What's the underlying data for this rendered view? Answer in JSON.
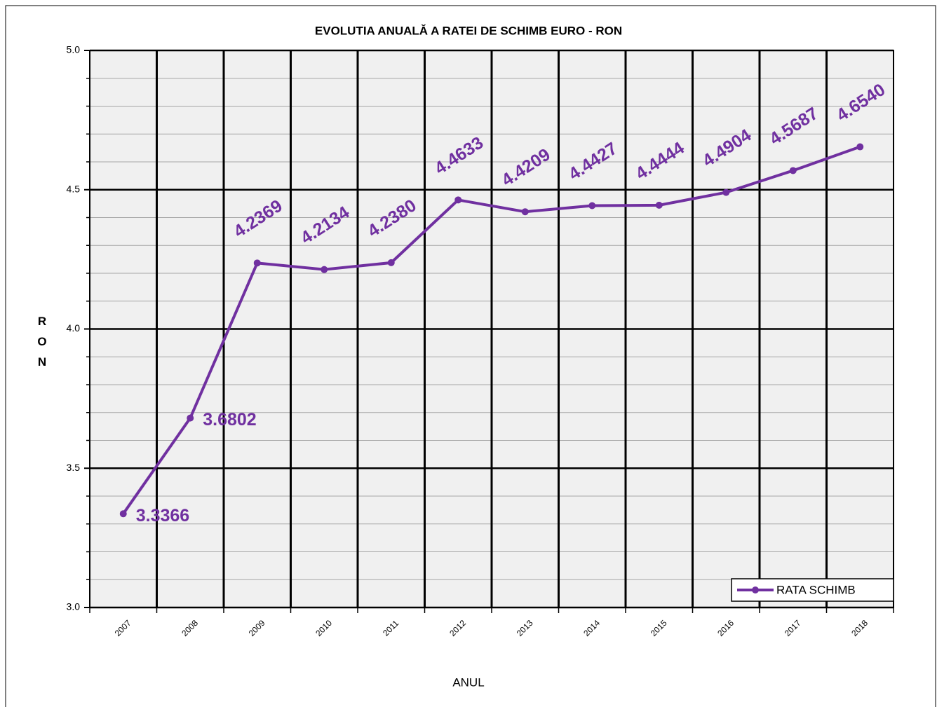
{
  "chart_data": {
    "type": "line",
    "title": "EVOLUTIA ANUALĂ  A  RATEI DE SCHIMB EURO - RON",
    "x_label": "ANUL",
    "y_label": "R O N",
    "categories": [
      "2007",
      "2008",
      "2009",
      "2010",
      "2011",
      "2012",
      "2013",
      "2014",
      "2015",
      "2016",
      "2017",
      "2018"
    ],
    "series": [
      {
        "name": "RATA SCHIMB",
        "color": "#7030a0",
        "values": [
          3.3366,
          3.6802,
          4.2369,
          4.2134,
          4.238,
          4.4633,
          4.4209,
          4.4427,
          4.4444,
          4.4904,
          4.5687,
          4.654
        ],
        "value_labels": [
          "3.3366",
          "3.6802",
          "4.2369",
          "4.2134",
          "4.2380",
          "4.4633",
          "4.4209",
          "4.4427",
          "4.4444",
          "4.4904",
          "4.5687",
          "4.6540"
        ]
      }
    ],
    "ylim": [
      3,
      5
    ],
    "yticks": [
      {
        "value": 3,
        "label": "3.0"
      },
      3.5,
      {
        "value": 4,
        "label": "4.0"
      },
      4.5,
      {
        "value": 5,
        "label": "5.0"
      }
    ],
    "minor_yticks": [
      3.1,
      3.2,
      3.3,
      3.4,
      3.6,
      3.7,
      3.8,
      3.9,
      4.1,
      4.2,
      4.3,
      4.4,
      4.6,
      4.7,
      4.8,
      4.9
    ],
    "grid": true,
    "legend": "lower right"
  }
}
